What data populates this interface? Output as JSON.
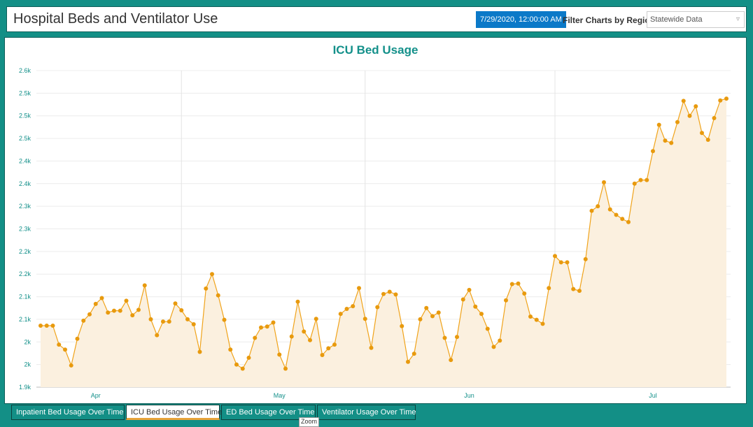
{
  "header": {
    "title": "Hospital Beds and Ventilator Use",
    "date": "7/29/2020, 12:00:00 AM",
    "filter_label": "Filter Charts by Region",
    "region_selected": "Statewide Data"
  },
  "tabs": [
    {
      "label": "Inpatient Bed Usage Over Time"
    },
    {
      "label": "ICU Bed Usage Over Time"
    },
    {
      "label": "ED Bed Usage Over Time"
    },
    {
      "label": "Ventilator Usage Over Time"
    }
  ],
  "active_tab": 1,
  "tooltip": "Zoom",
  "colors": {
    "accent": "#13908a",
    "line": "#f0a31a",
    "fill": "#fbf0df",
    "date_chip": "#0b79c8"
  },
  "chart_data": {
    "type": "line",
    "title": "ICU Bed Usage",
    "xlabel": "",
    "ylabel": "",
    "ylim": [
      1900,
      2600
    ],
    "y_tick_values": [
      1900,
      1950,
      2000,
      2050,
      2100,
      2150,
      2200,
      2250,
      2300,
      2350,
      2400,
      2450,
      2500,
      2550,
      2600
    ],
    "y_tick_labels": [
      "1.9k",
      "2k",
      "2k",
      "2.1k",
      "2.1k",
      "2.2k",
      "2.2k",
      "2.3k",
      "2.3k",
      "2.4k",
      "2.4k",
      "2.5k",
      "2.5k",
      "2.5k",
      "2.6k"
    ],
    "x_ticks": [
      {
        "date": "2020-04-01",
        "label": "Apr"
      },
      {
        "date": "2020-05-01",
        "label": "May"
      },
      {
        "date": "2020-06-01",
        "label": "Jun"
      },
      {
        "date": "2020-07-01",
        "label": "Jul"
      }
    ],
    "month_gridlines": [
      "2020-04-15",
      "2020-05-15",
      "2020-06-15"
    ],
    "x_start": "2020-03-23",
    "series": [
      {
        "values": [
          2036,
          2036,
          2036,
          1994,
          1983,
          1948,
          2007,
          2047,
          2061,
          2084,
          2097,
          2065,
          2069,
          2069,
          2091,
          2059,
          2071,
          2125,
          2050,
          2015,
          2045,
          2045,
          2085,
          2070,
          2050,
          2039,
          1978,
          2118,
          2150,
          2103,
          2049,
          1983,
          1950,
          1941,
          1965,
          2009,
          2032,
          2034,
          2043,
          1972,
          1941,
          2012,
          2089,
          2023,
          2004,
          2051,
          1971,
          1986,
          1994,
          2062,
          2073,
          2079,
          2119,
          2051,
          1987,
          2077,
          2106,
          2111,
          2105,
          2035,
          1956,
          1974,
          2050,
          2075,
          2057,
          2065,
          2009,
          1960,
          2011,
          2094,
          2115,
          2078,
          2062,
          2029,
          1989,
          2003,
          2092,
          2128,
          2129,
          2107,
          2056,
          2049,
          2040,
          2119,
          2190,
          2176,
          2176,
          2117,
          2113,
          2183,
          2290,
          2300,
          2353,
          2293,
          2281,
          2272,
          2265,
          2350,
          2358,
          2358,
          2422,
          2480,
          2445,
          2440,
          2486,
          2533,
          2500,
          2521,
          2462,
          2447,
          2495,
          2534,
          2538
        ]
      }
    ]
  }
}
